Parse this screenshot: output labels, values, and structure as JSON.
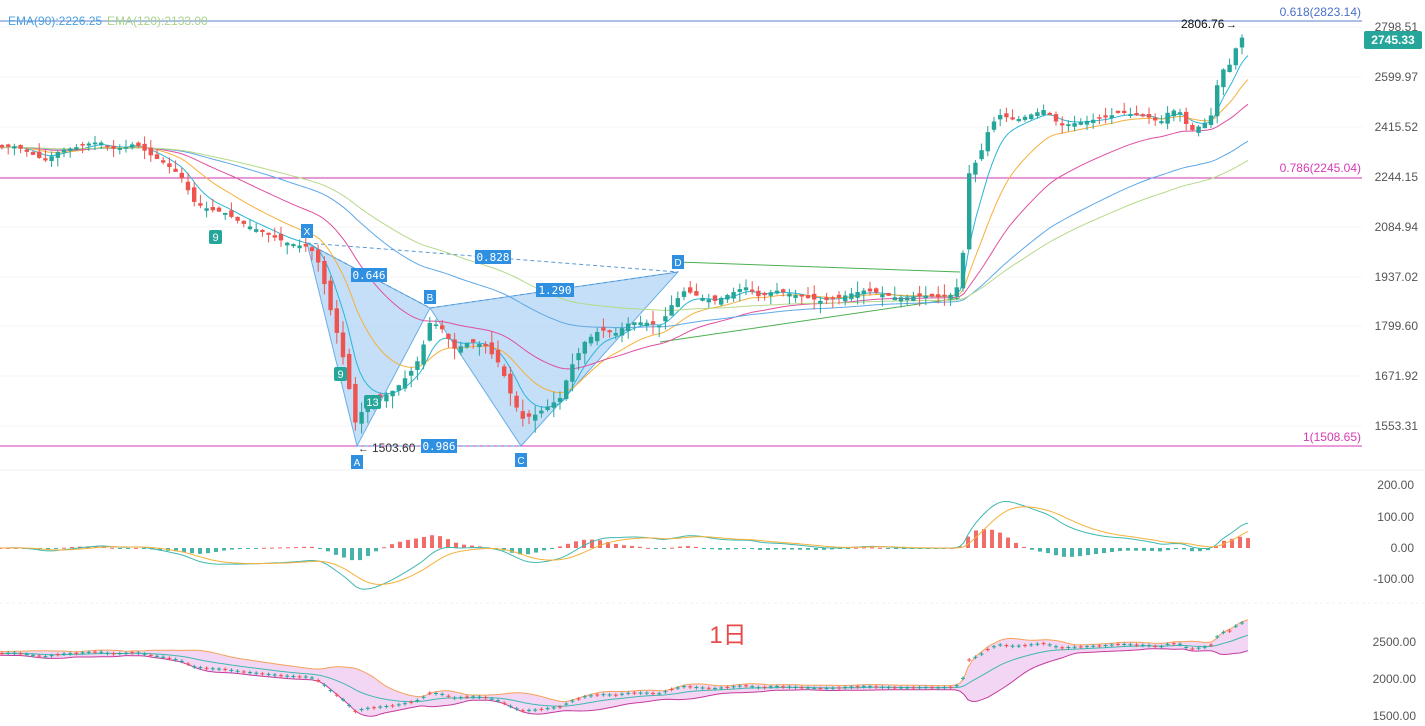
{
  "colors": {
    "up": "#26a69a",
    "down": "#ef5350",
    "ema_fast": "#29b6d8",
    "ema_mid": "#f5b03a",
    "ema_slow": "#e04fa0",
    "ema_90": "#5fa8e8",
    "ema_120": "#b6d98a",
    "fib": "#d63ab4",
    "pattern": "#7cb7e8",
    "price_tag": "#26a69a",
    "watermark": "#e84a4a",
    "bb_fill": "#f3d6f3",
    "bb_upper": "#f5a25a",
    "bb_lower": "#c53a9e",
    "bb_mid": "#3fb8b0"
  },
  "legend": {
    "ema90": "EMA(90):2226.25",
    "ema120": "EMA(120):2133.00"
  },
  "last_price": "2745.33",
  "high_label": "2806.76",
  "low_label": "1503.60",
  "watermark": "1日",
  "fib_labels": {
    "f618": "0.618(2823.14)",
    "f786": "0.786(2245.04)",
    "f1": "1(1508.65)"
  },
  "harmonic": {
    "points": [
      {
        "label": "X",
        "value": 2035
      },
      {
        "label": "A",
        "value": 1503.6
      },
      {
        "label": "B",
        "value": 1855
      },
      {
        "label": "C",
        "value": 1508
      },
      {
        "label": "D",
        "value": 1960
      }
    ],
    "ratios": [
      "0.646",
      "0.828",
      "1.290",
      "0.986"
    ]
  },
  "td_labels": [
    "9",
    "9",
    "13"
  ],
  "chart_data": {
    "type": "candlestick",
    "price_axis": {
      "ticks": [
        "2798.51",
        "2599.97",
        "2415.52",
        "2244.15",
        "2084.94",
        "1937.02",
        "1799.60",
        "1671.92",
        "1553.31"
      ],
      "range": [
        1470,
        2860
      ]
    },
    "macd_axis": {
      "ticks": [
        "200.00",
        "100.00",
        "0.00",
        "-100.00"
      ],
      "range": [
        -160,
        220
      ]
    },
    "volume_axis": {
      "ticks": [
        "2500.00",
        "2000.00",
        "1500.00"
      ],
      "range": [
        1450,
        2850
      ]
    },
    "fib_levels": [
      2823.14,
      2245.04,
      1508.65
    ],
    "close_path": [
      [
        0,
        2345
      ],
      [
        15,
        2350
      ],
      [
        30,
        2325
      ],
      [
        45,
        2300
      ],
      [
        60,
        2335
      ],
      [
        75,
        2345
      ],
      [
        90,
        2360
      ],
      [
        100,
        2365
      ],
      [
        110,
        2340
      ],
      [
        125,
        2345
      ],
      [
        135,
        2360
      ],
      [
        150,
        2320
      ],
      [
        165,
        2290
      ],
      [
        180,
        2250
      ],
      [
        195,
        2160
      ],
      [
        210,
        2140
      ],
      [
        225,
        2130
      ],
      [
        240,
        2100
      ],
      [
        255,
        2080
      ],
      [
        270,
        2060
      ],
      [
        285,
        2040
      ],
      [
        300,
        2030
      ],
      [
        310,
        2025
      ],
      [
        320,
        1970
      ],
      [
        330,
        1850
      ],
      [
        345,
        1700
      ],
      [
        355,
        1560
      ],
      [
        365,
        1600
      ],
      [
        380,
        1620
      ],
      [
        395,
        1640
      ],
      [
        410,
        1680
      ],
      [
        420,
        1720
      ],
      [
        430,
        1810
      ],
      [
        440,
        1800
      ],
      [
        455,
        1740
      ],
      [
        470,
        1760
      ],
      [
        485,
        1750
      ],
      [
        500,
        1700
      ],
      [
        512,
        1620
      ],
      [
        522,
        1570
      ],
      [
        535,
        1580
      ],
      [
        548,
        1600
      ],
      [
        560,
        1620
      ],
      [
        572,
        1700
      ],
      [
        585,
        1760
      ],
      [
        600,
        1790
      ],
      [
        615,
        1780
      ],
      [
        630,
        1810
      ],
      [
        645,
        1810
      ],
      [
        660,
        1800
      ],
      [
        672,
        1860
      ],
      [
        685,
        1900
      ],
      [
        700,
        1880
      ],
      [
        715,
        1870
      ],
      [
        730,
        1890
      ],
      [
        745,
        1910
      ],
      [
        760,
        1880
      ],
      [
        775,
        1900
      ],
      [
        790,
        1890
      ],
      [
        805,
        1880
      ],
      [
        820,
        1870
      ],
      [
        835,
        1875
      ],
      [
        850,
        1890
      ],
      [
        865,
        1900
      ],
      [
        880,
        1890
      ],
      [
        895,
        1880
      ],
      [
        910,
        1880
      ],
      [
        925,
        1885
      ],
      [
        940,
        1880
      ],
      [
        955,
        1890
      ],
      [
        962,
        1960
      ],
      [
        968,
        2250
      ],
      [
        980,
        2320
      ],
      [
        990,
        2420
      ],
      [
        1000,
        2460
      ],
      [
        1015,
        2440
      ],
      [
        1030,
        2460
      ],
      [
        1045,
        2480
      ],
      [
        1060,
        2420
      ],
      [
        1075,
        2430
      ],
      [
        1090,
        2440
      ],
      [
        1105,
        2450
      ],
      [
        1120,
        2470
      ],
      [
        1135,
        2460
      ],
      [
        1150,
        2450
      ],
      [
        1160,
        2430
      ],
      [
        1170,
        2480
      ],
      [
        1180,
        2470
      ],
      [
        1190,
        2400
      ],
      [
        1200,
        2420
      ],
      [
        1210,
        2440
      ],
      [
        1220,
        2620
      ],
      [
        1230,
        2650
      ],
      [
        1240,
        2760
      ],
      [
        1248,
        2745.33
      ]
    ]
  }
}
